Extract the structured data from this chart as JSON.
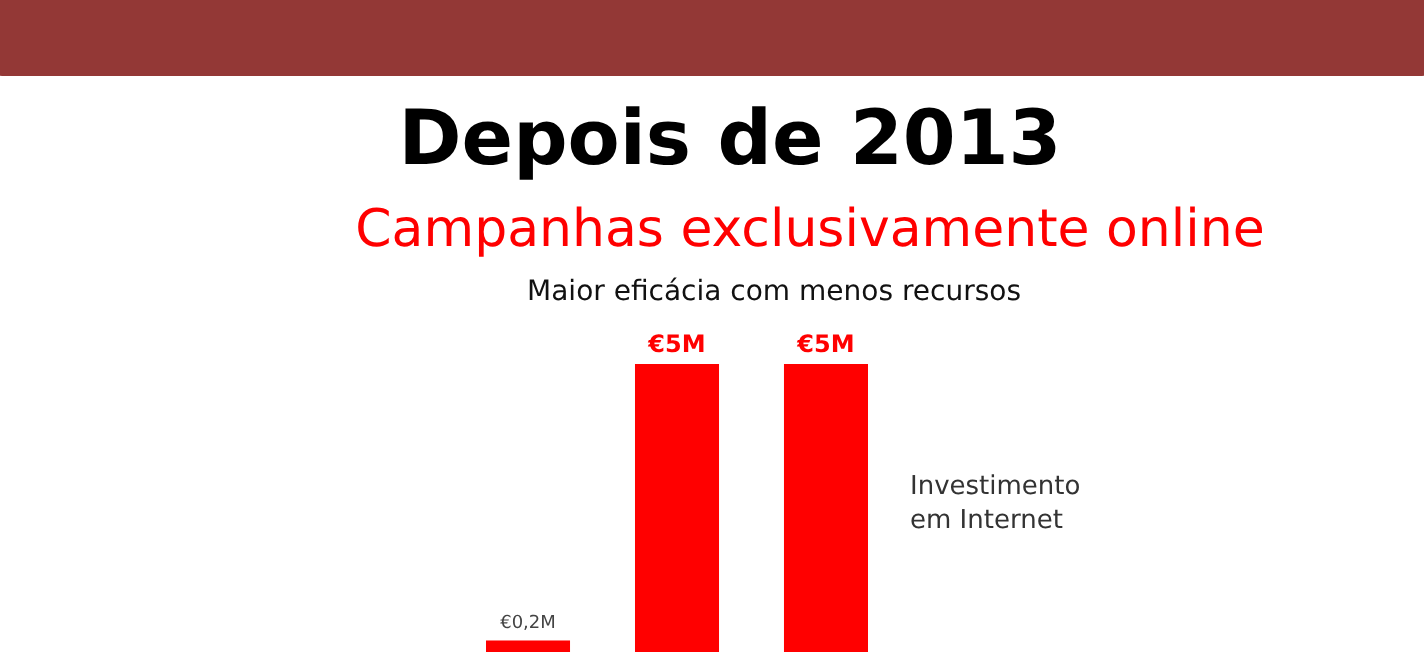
{
  "chart_data": {
    "type": "bar",
    "title": "Depois de 2013",
    "subtitle": "Campanhas exclusivamente online",
    "annotations": [
      "Maior eficácia com menos recursos"
    ],
    "categories": [
      null,
      null,
      null
    ],
    "series": [
      {
        "name": "Investimento em Internet",
        "color": "#ff0000",
        "values": [
          0.2,
          5,
          5
        ],
        "value_labels": [
          "€0,2M",
          "€5M",
          "€5M"
        ]
      }
    ],
    "legend": "right"
  }
}
